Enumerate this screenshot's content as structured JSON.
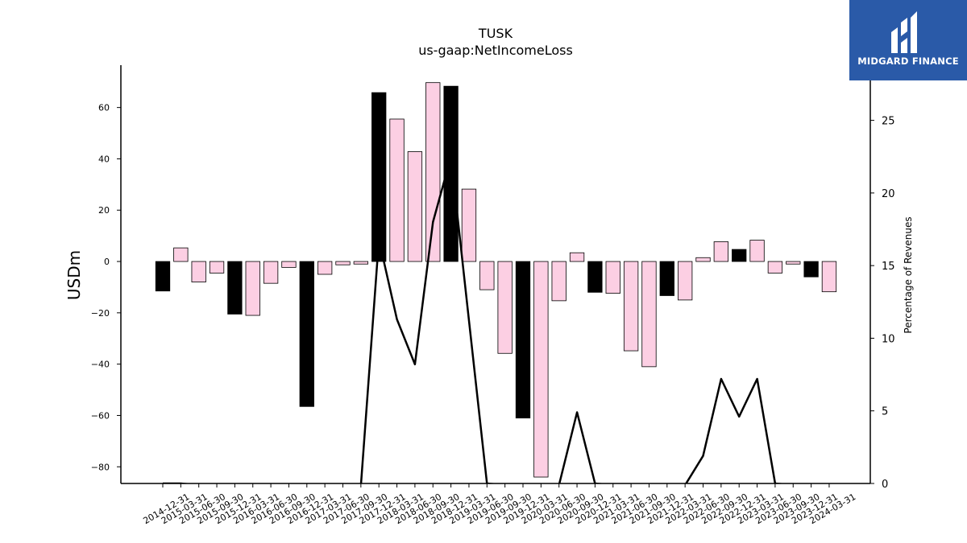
{
  "chart_data": {
    "type": "bar",
    "title": "TUSK",
    "subtitle": "us-gaap:NetIncomeLoss",
    "ylabel": "USDm",
    "ylabel_right": "Percentage of Revenues",
    "ylim": [
      -86.5,
      76.5
    ],
    "ylim_right": [
      0,
      28.8
    ],
    "yticks": [
      -80,
      -60,
      -40,
      -20,
      0,
      20,
      40,
      60
    ],
    "yticks_right": [
      0,
      5,
      10,
      15,
      20,
      25
    ],
    "categories": [
      "2014-12-31",
      "2015-03-31",
      "2015-06-30",
      "2015-09-30",
      "2015-12-31",
      "2016-03-31",
      "2016-06-30",
      "2016-09-30",
      "2016-12-31",
      "2017-03-31",
      "2017-06-30",
      "2017-09-30",
      "2017-12-31",
      "2018-03-31",
      "2018-06-30",
      "2018-09-30",
      "2018-12-31",
      "2019-03-31",
      "2019-06-30",
      "2019-09-30",
      "2019-12-31",
      "2020-03-31",
      "2020-06-30",
      "2020-09-30",
      "2020-12-31",
      "2021-03-31",
      "2021-06-30",
      "2021-09-30",
      "2021-12-31",
      "2022-03-31",
      "2022-06-30",
      "2022-09-30",
      "2022-12-31",
      "2023-03-31",
      "2023-06-30",
      "2023-09-30",
      "2023-12-31",
      "2024-03-31"
    ],
    "series": [
      {
        "values": [
          -11.5,
          5.3,
          -8,
          -4.5,
          -20.5,
          -21,
          -8.5,
          -2.3,
          -56.5,
          -5,
          -1.3,
          -1,
          65.8,
          55.5,
          42.8,
          69.7,
          68.3,
          28.2,
          -11,
          -35.8,
          -61,
          -84,
          -15.3,
          3.4,
          -12,
          -12.4,
          -34.8,
          -41,
          -13.3,
          -15,
          1.5,
          7.7,
          4.7,
          8.3,
          -4.5,
          -1,
          -6,
          -11.8
        ],
        "colors": [
          "#000000",
          "#fccfe3",
          "#fccfe3",
          "#fccfe3",
          "#000000",
          "#fccfe3",
          "#fccfe3",
          "#fccfe3",
          "#000000",
          "#fccfe3",
          "#fccfe3",
          "#fccfe3",
          "#000000",
          "#fccfe3",
          "#fccfe3",
          "#fccfe3",
          "#000000",
          "#fccfe3",
          "#fccfe3",
          "#fccfe3",
          "#000000",
          "#fccfe3",
          "#fccfe3",
          "#fccfe3",
          "#000000",
          "#fccfe3",
          "#fccfe3",
          "#fccfe3",
          "#000000",
          "#fccfe3",
          "#fccfe3",
          "#fccfe3",
          "#000000",
          "#fccfe3",
          "#fccfe3",
          "#fccfe3",
          "#000000",
          "#fccfe3"
        ]
      },
      {
        "type": "line",
        "axis": "right",
        "color": "#000000",
        "values": [
          0,
          0,
          null,
          null,
          null,
          null,
          null,
          null,
          null,
          null,
          null,
          null,
          16.8,
          11.3,
          8.2,
          18,
          22.5,
          11.2,
          0,
          null,
          null,
          null,
          null,
          4.9,
          0,
          null,
          null,
          null,
          null,
          null,
          1.9,
          7.2,
          4.6,
          7.2,
          0,
          null,
          null,
          null
        ]
      }
    ],
    "legend": "none",
    "grid": false
  },
  "brand": {
    "name": "MIDGARD FINANCE",
    "color": "#2a5aa8"
  }
}
